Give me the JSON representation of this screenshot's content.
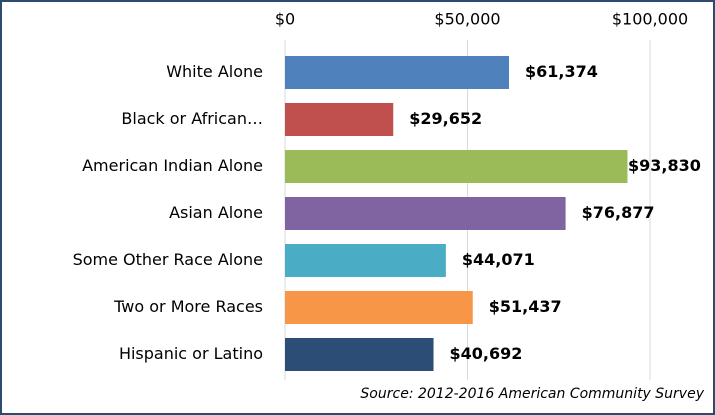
{
  "chart_data": {
    "type": "bar",
    "orientation": "horizontal",
    "categories": [
      "White Alone",
      "Black or African…",
      "American Indian Alone",
      "Asian Alone",
      "Some Other Race Alone",
      "Two or More Races",
      "Hispanic or Latino"
    ],
    "values": [
      61374,
      29652,
      93830,
      76877,
      44071,
      51437,
      40692
    ],
    "value_labels": [
      "$61,374",
      "$29,652",
      "$93,830",
      "$76,877",
      "$44,071",
      "$51,437",
      "$40,692"
    ],
    "colors": [
      "#4f81bd",
      "#c0504d",
      "#9bbb59",
      "#8064a2",
      "#4bacc6",
      "#f79646",
      "#2c4d75"
    ],
    "xlim": [
      0,
      100000
    ],
    "xticks": [
      {
        "value": 0,
        "label": "$0"
      },
      {
        "value": 50000,
        "label": "$50,000"
      },
      {
        "value": 100000,
        "label": "$100,000"
      }
    ],
    "grid": true,
    "source": "Source: 2012-2016 American Community Survey"
  }
}
